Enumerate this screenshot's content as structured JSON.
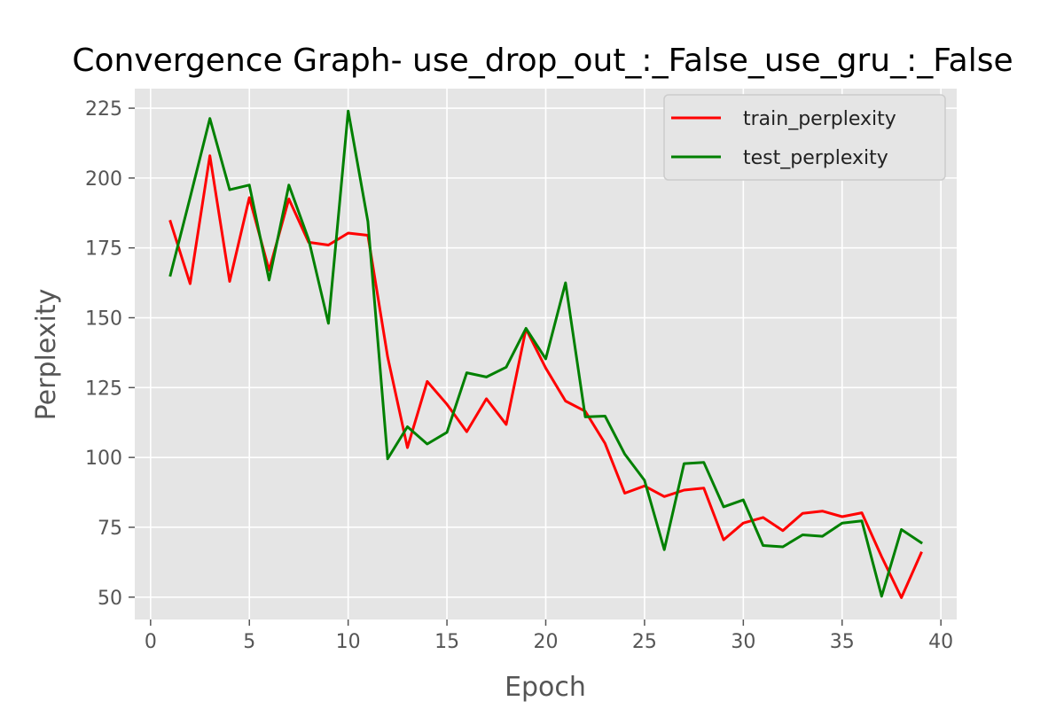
{
  "chart_data": {
    "type": "line",
    "title": "Convergence Graph- use_drop_out_:_False_use_gru_:_False",
    "xlabel": "Epoch",
    "ylabel": "Perplexity",
    "xlim": [
      -0.8,
      40.8
    ],
    "ylim": [
      42,
      232
    ],
    "xticks": [
      0,
      5,
      10,
      15,
      20,
      25,
      30,
      35,
      40
    ],
    "yticks": [
      50,
      75,
      100,
      125,
      150,
      175,
      200,
      225
    ],
    "grid": true,
    "legend_position": "top-right",
    "x": [
      1,
      2,
      3,
      4,
      5,
      6,
      7,
      8,
      9,
      10,
      11,
      12,
      13,
      14,
      15,
      16,
      17,
      18,
      19,
      20,
      21,
      22,
      23,
      24,
      25,
      26,
      27,
      28,
      29,
      30,
      31,
      32,
      33,
      34,
      35,
      36,
      37,
      38,
      39
    ],
    "series": [
      {
        "name": "train_perplexity",
        "color": "#ff0000",
        "values": [
          184.5,
          162.2,
          208,
          163,
          193,
          167,
          192.5,
          177,
          176,
          180.3,
          179.5,
          136,
          103.5,
          127.2,
          119,
          109.2,
          121,
          111.8,
          146,
          132,
          120.2,
          116.5,
          105,
          87.2,
          89.8,
          86,
          88.3,
          89,
          70.5,
          76.5,
          78.5,
          73.8,
          80,
          80.8,
          78.8,
          80.2,
          64.5,
          49.8,
          65.8
        ]
      },
      {
        "name": "test_perplexity",
        "color": "#008000",
        "values": [
          165.2,
          193,
          221.3,
          195.8,
          197.5,
          163.5,
          197.5,
          178,
          148,
          224,
          184.5,
          99.5,
          111,
          104.8,
          109,
          130.3,
          128.8,
          132.3,
          146.2,
          135.3,
          162.5,
          114.5,
          114.8,
          101.2,
          91.8,
          67,
          97.8,
          98.2,
          82.3,
          84.8,
          68.5,
          68,
          72.3,
          71.8,
          76.5,
          77.3,
          50.3,
          74.2,
          69.5
        ]
      }
    ]
  },
  "colors": {
    "plot_background": "#e5e5e5",
    "grid": "#ffffff",
    "tick_text": "#555555"
  }
}
